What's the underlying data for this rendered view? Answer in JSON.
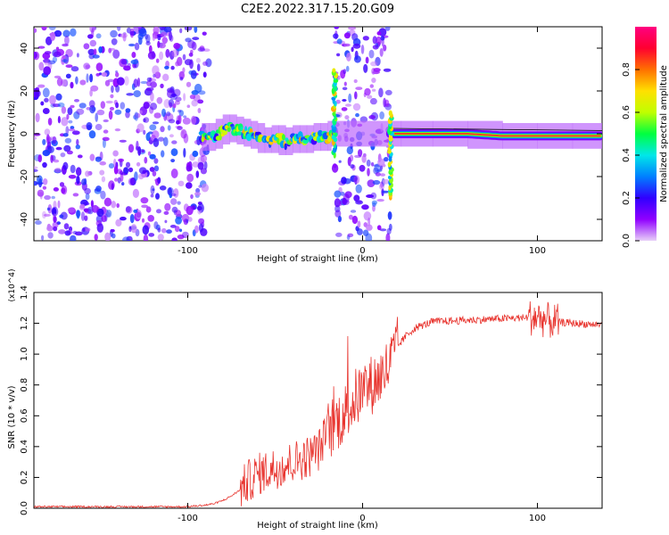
{
  "figure": {
    "title": "C2E2.2022.317.15.20.G09"
  },
  "chart_data": [
    {
      "type": "heatmap",
      "title": "C2E2.2022.317.15.20.G09",
      "xlabel": "Height of straight line (km)",
      "ylabel": "Frequency (Hz)",
      "xlim": [
        -188,
        137
      ],
      "ylim": [
        -50,
        50
      ],
      "xticks": [
        -100,
        0,
        100
      ],
      "yticks": [
        -40,
        -20,
        0,
        20,
        40
      ],
      "colorbar": {
        "label": "Normalized spectral amplitude",
        "range": [
          0,
          1
        ],
        "ticks": [
          0.0,
          0.2,
          0.4,
          0.6,
          0.8
        ],
        "colormap": [
          "#e8d0f8",
          "#9000ff",
          "#3000ff",
          "#0080ff",
          "#00e8e8",
          "#00ff40",
          "#c0ff00",
          "#ffe000",
          "#ff7000",
          "#ff0030",
          "#ff0080"
        ]
      },
      "regions": [
        {
          "x": [
            -188,
            -88
          ],
          "kind": "scattered noise",
          "level": 0.15
        },
        {
          "x": [
            -16,
            16
          ],
          "kind": "scattered noise",
          "level": 0.15
        },
        {
          "x": [
            -92,
            -16
          ],
          "kind": "signal band",
          "freq": [
            -5,
            5
          ],
          "level": 0.45
        },
        {
          "x": [
            16,
            137
          ],
          "kind": "signal line",
          "freq": [
            -2,
            2
          ],
          "level": 0.9
        }
      ],
      "ridge": [
        [
          -92,
          -1
        ],
        [
          -88,
          -2
        ],
        [
          -84,
          -1
        ],
        [
          -80,
          1
        ],
        [
          -76,
          3
        ],
        [
          -72,
          2
        ],
        [
          -68,
          1
        ],
        [
          -64,
          0
        ],
        [
          -60,
          -1
        ],
        [
          -56,
          -3
        ],
        [
          -52,
          -3
        ],
        [
          -48,
          -2
        ],
        [
          -44,
          -4
        ],
        [
          -40,
          -3
        ],
        [
          -36,
          -2
        ],
        [
          -32,
          -3
        ],
        [
          -28,
          -2
        ],
        [
          -24,
          -1
        ],
        [
          -20,
          -2
        ],
        [
          -18,
          0
        ],
        [
          22,
          0
        ],
        [
          40,
          0
        ],
        [
          60,
          0
        ],
        [
          80,
          -1
        ],
        [
          100,
          -1
        ],
        [
          120,
          -1
        ],
        [
          137,
          -1
        ]
      ],
      "spikes": [
        {
          "x": -16,
          "freq": [
            -10,
            30
          ]
        },
        {
          "x": 16,
          "freq": [
            -30,
            10
          ]
        }
      ]
    },
    {
      "type": "line",
      "xlabel": "Height of straight line (km)",
      "ylabel": "SNR (10 * v/v)",
      "y_multiplier": "(x10^4)",
      "xlim": [
        -188,
        137
      ],
      "ylim": [
        0,
        1.4
      ],
      "xticks": [
        -100,
        0,
        100
      ],
      "yticks": [
        0.0,
        0.2,
        0.4,
        0.6,
        0.8,
        1.0,
        1.2,
        1.4
      ],
      "color": "#e8342e",
      "x": [
        -188,
        -170,
        -150,
        -130,
        -110,
        -100,
        -90,
        -85,
        -80,
        -75,
        -70,
        -65,
        -60,
        -55,
        -50,
        -45,
        -40,
        -35,
        -30,
        -25,
        -20,
        -15,
        -10,
        -5,
        0,
        5,
        10,
        15,
        20,
        25,
        30,
        40,
        60,
        80,
        100,
        105,
        110,
        120,
        137
      ],
      "y": [
        0.01,
        0.01,
        0.01,
        0.01,
        0.01,
        0.01,
        0.02,
        0.03,
        0.05,
        0.08,
        0.12,
        0.18,
        0.22,
        0.24,
        0.26,
        0.28,
        0.3,
        0.32,
        0.34,
        0.38,
        0.5,
        0.56,
        0.62,
        0.7,
        0.76,
        0.8,
        0.85,
        0.92,
        1.05,
        1.12,
        1.17,
        1.21,
        1.22,
        1.23,
        1.24,
        1.22,
        1.21,
        1.2,
        1.19
      ],
      "noise": [
        {
          "x": [
            -70,
            -20
          ],
          "amplitude": 0.14
        },
        {
          "x": [
            -20,
            20
          ],
          "amplitude": 0.2
        },
        {
          "x": [
            20,
            137
          ],
          "amplitude": 0.025
        },
        {
          "x": [
            95,
            112
          ],
          "amplitude": 0.12
        }
      ]
    }
  ]
}
